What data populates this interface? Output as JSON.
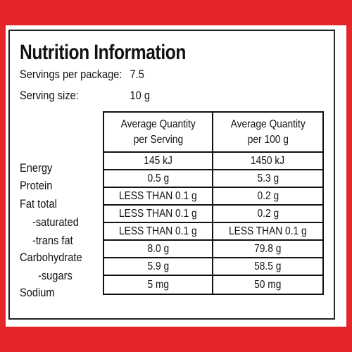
{
  "title": "Nutrition Information",
  "servings_per_package": {
    "label": "Servings per package:",
    "value": "7.5"
  },
  "serving_size": {
    "label": "Serving size:",
    "value": "10 g"
  },
  "columns": [
    "Average Quantity per Serving",
    "Average Quantity per 100 g"
  ],
  "column_lines": [
    [
      "Average Quantity",
      "per Serving"
    ],
    [
      "Average Quantity",
      "per 100 g"
    ]
  ],
  "rows": [
    {
      "label": "Energy",
      "per_serving": "145 kJ",
      "per_100g": "1450 kJ"
    },
    {
      "label": "Protein",
      "per_serving": "0.5 g",
      "per_100g": "5.3 g"
    },
    {
      "label": "Fat total",
      "per_serving": "LESS THAN 0.1 g",
      "per_100g": "0.2 g"
    },
    {
      "label": "-saturated",
      "per_serving": "LESS THAN 0.1 g",
      "per_100g": "0.2 g"
    },
    {
      "label": "-trans fat",
      "per_serving": "LESS THAN 0.1 g",
      "per_100g": "LESS THAN 0.1 g"
    },
    {
      "label": "Carbohydrate",
      "per_serving": "8.0 g",
      "per_100g": "79.8 g"
    },
    {
      "label": "-sugars",
      "per_serving": "5.9 g",
      "per_100g": "58.5 g"
    },
    {
      "label": "Sodium",
      "per_serving": "5 mg",
      "per_100g": "50 mg"
    }
  ],
  "colors": {
    "border": "#e4262b",
    "text": "#111111"
  }
}
